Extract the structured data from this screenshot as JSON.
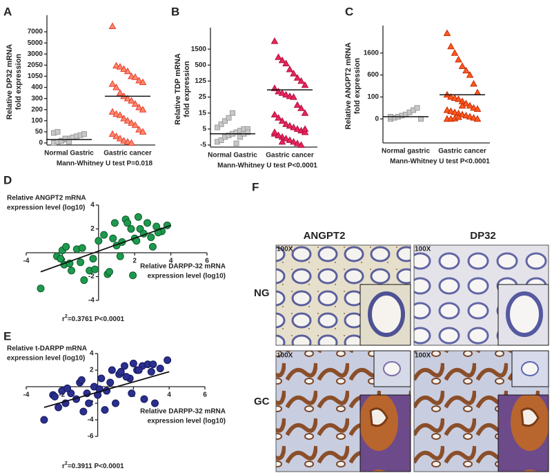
{
  "chart_data": [
    {
      "type": "dot",
      "panel": "A",
      "categories": [
        "Normal Gastric",
        "Gastric cancer"
      ],
      "ylabel": [
        "Relative DP32 mRNA",
        "fold expression"
      ],
      "xlabel": "Mann-Whitney U test P=0.018",
      "ylim": [
        0,
        8000
      ],
      "yticks": [
        0,
        50,
        100,
        200,
        300,
        400,
        1050,
        2050,
        3000,
        5000,
        7000
      ],
      "groups": [
        {
          "marker": "square",
          "color": "#c8c8c8",
          "stroke": "#9a9a9a",
          "mean": 15,
          "values": [
            0,
            5,
            10,
            15,
            20,
            25,
            30,
            35,
            40,
            45,
            50,
            10,
            20,
            5
          ]
        },
        {
          "marker": "triangle",
          "color": "#ff8a65",
          "stroke": "#e53935",
          "mean": 320,
          "values": [
            7500,
            2000,
            1900,
            1700,
            1500,
            1050,
            1000,
            800,
            700,
            600,
            400,
            350,
            320,
            300,
            280,
            250,
            220,
            200,
            180,
            160,
            150,
            120,
            100,
            90,
            80,
            60,
            50,
            40,
            30,
            20,
            10,
            5,
            0
          ]
        }
      ]
    },
    {
      "type": "dot",
      "panel": "B",
      "categories": [
        "Normal  Gastric",
        "Gastric cancer"
      ],
      "ylabel": [
        "Relative TDP mRNA",
        "fold expression"
      ],
      "xlabel": "Mann-Whitney U test P<0.0001",
      "ylim": [
        -5,
        2500
      ],
      "yticks": [
        -5,
        5,
        15,
        25,
        125,
        500,
        1500
      ],
      "groups": [
        {
          "marker": "square",
          "color": "#c8c8c8",
          "stroke": "#9a9a9a",
          "mean": 2,
          "values": [
            -3,
            -2,
            0,
            1,
            2,
            3,
            4,
            5,
            5,
            6,
            8,
            10,
            12,
            15,
            -4,
            0,
            2,
            3
          ]
        },
        {
          "marker": "triangle",
          "color": "#e8245e",
          "stroke": "#b0103c",
          "mean": 70,
          "values": [
            2000,
            1000,
            800,
            600,
            400,
            300,
            200,
            125,
            100,
            80,
            60,
            50,
            40,
            30,
            25,
            20,
            18,
            15,
            14,
            12,
            10,
            8,
            7,
            6,
            5,
            4,
            3,
            2,
            1,
            0,
            -1,
            -2,
            -3,
            -4,
            -5,
            5,
            3,
            1,
            -3
          ]
        }
      ]
    },
    {
      "type": "dot",
      "panel": "C",
      "categories": [
        "Normal gastric",
        "Gastric cancer"
      ],
      "ylabel": [
        "Relative ANGPT2 mRNA",
        "fold expression"
      ],
      "xlabel": "Mann-Whitney U test P<0.0001",
      "ylim": [
        -100,
        2600
      ],
      "yticks": [
        0,
        100,
        600,
        1600
      ],
      "groups": [
        {
          "marker": "square",
          "color": "#c8c8c8",
          "stroke": "#9a9a9a",
          "mean": 10,
          "values": [
            0,
            5,
            10,
            15,
            20,
            30,
            40,
            50,
            0,
            10
          ]
        },
        {
          "marker": "triangle",
          "color": "#ff5a1f",
          "stroke": "#c62800",
          "mean": 150,
          "values": [
            2500,
            1900,
            1600,
            1300,
            1000,
            800,
            600,
            400,
            200,
            150,
            100,
            95,
            90,
            80,
            70,
            60,
            50,
            45,
            40,
            35,
            30,
            25,
            20,
            15,
            10,
            5,
            0,
            0,
            0,
            2,
            8,
            60
          ]
        }
      ]
    },
    {
      "type": "scatter",
      "panel": "D",
      "color": "#1e9a4e",
      "stroke": "#0b5a2a",
      "ylabel": [
        "Relative ANGPT2 mRNA",
        "expression  level (log10)"
      ],
      "xlabel": [
        "Relative DARPP-32 mRNA",
        "expression level (log10)"
      ],
      "stat": {
        "r": "r",
        "exp": "2",
        "text": "=0.3761   P<0.0001"
      },
      "xlim": [
        -4,
        6
      ],
      "ylim": [
        -4,
        4
      ],
      "xticks": [
        -4,
        -2,
        2,
        4,
        6
      ],
      "yticks": [
        -4,
        -2,
        2,
        4
      ],
      "x": [
        -3.2,
        -2.3,
        -2,
        -1.9,
        -1.8,
        -1.5,
        -1.2,
        -1.0,
        -0.8,
        -0.5,
        -0.3,
        0,
        0.3,
        0.5,
        0.8,
        1,
        1.2,
        1.5,
        1.6,
        1.8,
        2,
        2.2,
        2.3,
        2.5,
        2.7,
        3,
        3.2,
        3.5,
        3.8,
        -1.6,
        -0.9,
        0.6,
        1.3,
        2.1,
        2.9,
        -2.1,
        -0.2,
        0.9,
        1.9,
        3.3
      ],
      "y": [
        -3,
        -0.3,
        0.2,
        -1,
        0.5,
        -1.5,
        0.3,
        -0.8,
        -2.3,
        -1.5,
        -0.5,
        1,
        1.5,
        -1.8,
        1.2,
        0.6,
        -0.3,
        2.8,
        2.5,
        2,
        1.2,
        3,
        2,
        1.6,
        2.5,
        0.5,
        2.2,
        1.8,
        2.3,
        -0.9,
        0.4,
        -1.6,
        0.9,
        1,
        1.3,
        -0.5,
        -1.4,
        2.5,
        -1.9,
        1.7
      ],
      "regression": {
        "x": [
          -3.2,
          4
        ],
        "y": [
          -1.6,
          2.3
        ]
      }
    },
    {
      "type": "scatter",
      "panel": "E",
      "color": "#2b2f8f",
      "stroke": "#14175a",
      "ylabel": [
        "Relative t-DARPP mRNA",
        "expression  level (log10)"
      ],
      "xlabel": [
        "Relative DARPP-32 mRNA",
        "expression level (log10)"
      ],
      "stat": {
        "r": "r",
        "exp": "2",
        "text": "=0.3911   P<0.0001"
      },
      "xlim": [
        -4,
        6
      ],
      "ylim": [
        -6,
        4
      ],
      "xticks": [
        -4,
        -2,
        2,
        4,
        6
      ],
      "yticks": [
        -6,
        -4,
        -2,
        2,
        4
      ],
      "x": [
        -3,
        -2.5,
        -2.2,
        -2,
        -1.8,
        -1.5,
        -1.2,
        -1,
        -0.8,
        -0.5,
        -0.2,
        0,
        0.2,
        0.5,
        0.8,
        1,
        1.2,
        1.5,
        1.8,
        2,
        2.2,
        2.5,
        2.8,
        3,
        3.2,
        3.5,
        3.9,
        -1.7,
        -0.6,
        0.4,
        1.3,
        2.3,
        3.1,
        -2.4,
        -0.9,
        0.7,
        1.6,
        2.6,
        1.9,
        0.1
      ],
      "y": [
        -4,
        -1,
        -2.5,
        -0.5,
        -2,
        -0.8,
        -1.5,
        0.5,
        -3,
        -2,
        0,
        -1,
        1,
        -0.5,
        2,
        -2,
        1.5,
        2.5,
        1,
        2.8,
        2,
        2.5,
        2.7,
        1.8,
        -2,
        2.2,
        3.2,
        -0.2,
        -0.8,
        -2.8,
        1.8,
        2,
        2.7,
        -1.2,
        0.8,
        0.5,
        1.2,
        -1.5,
        -0.8,
        -0.3
      ],
      "regression": {
        "x": [
          -3,
          4
        ],
        "y": [
          -2.5,
          1.8
        ]
      }
    }
  ],
  "panel_f": {
    "panel": "F",
    "columns": [
      "ANGPT2",
      "DP32"
    ],
    "rows": [
      "NG",
      "GC"
    ],
    "magnification": "100X"
  }
}
